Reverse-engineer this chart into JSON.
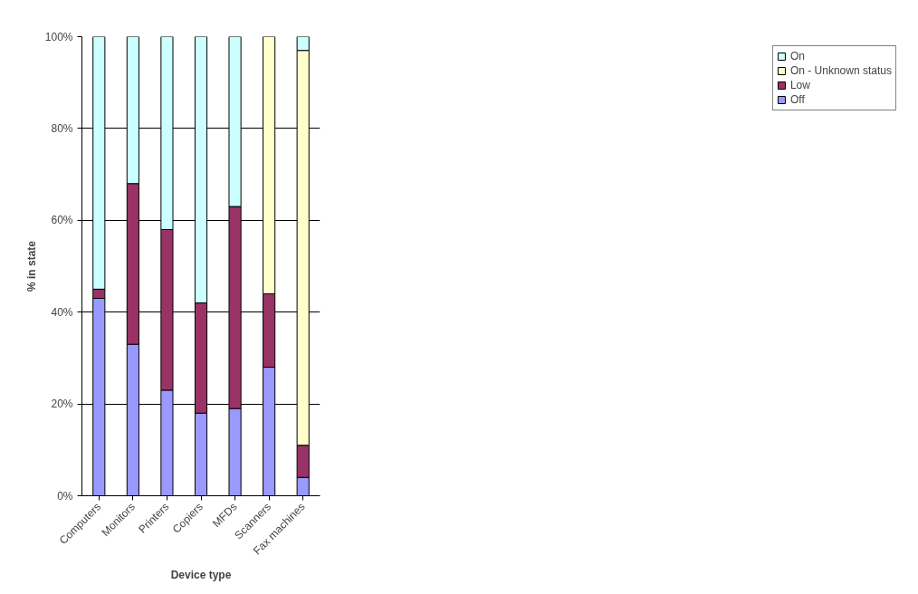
{
  "chart_data": {
    "type": "bar",
    "stacked": true,
    "xlabel": "Device type",
    "ylabel": "% in state",
    "categories": [
      "Computers",
      "Monitors",
      "Printers",
      "Copiers",
      "MFDs",
      "Scanners",
      "Fax machines"
    ],
    "series": [
      {
        "name": "Off",
        "color": "#9999ff",
        "values": [
          43,
          33,
          23,
          18,
          19,
          28,
          4
        ]
      },
      {
        "name": "Low",
        "color": "#993366",
        "values": [
          2,
          35,
          35,
          24,
          44,
          16,
          7
        ]
      },
      {
        "name": "On - Unknown status",
        "color": "#ffffcc",
        "values": [
          null,
          null,
          null,
          null,
          null,
          56,
          86
        ]
      },
      {
        "name": "On",
        "color": "#ccffff",
        "values": [
          55,
          32,
          42,
          58,
          37,
          null,
          3
        ]
      }
    ],
    "ylim": [
      0,
      100
    ],
    "yticks": [
      {
        "value": 0,
        "label": "0%"
      },
      {
        "value": 20,
        "label": "20%"
      },
      {
        "value": 40,
        "label": "40%"
      },
      {
        "value": 60,
        "label": "60%"
      },
      {
        "value": 80,
        "label": "80%"
      },
      {
        "value": 100,
        "label": "100%"
      }
    ],
    "grid": "y",
    "legend": "right"
  }
}
